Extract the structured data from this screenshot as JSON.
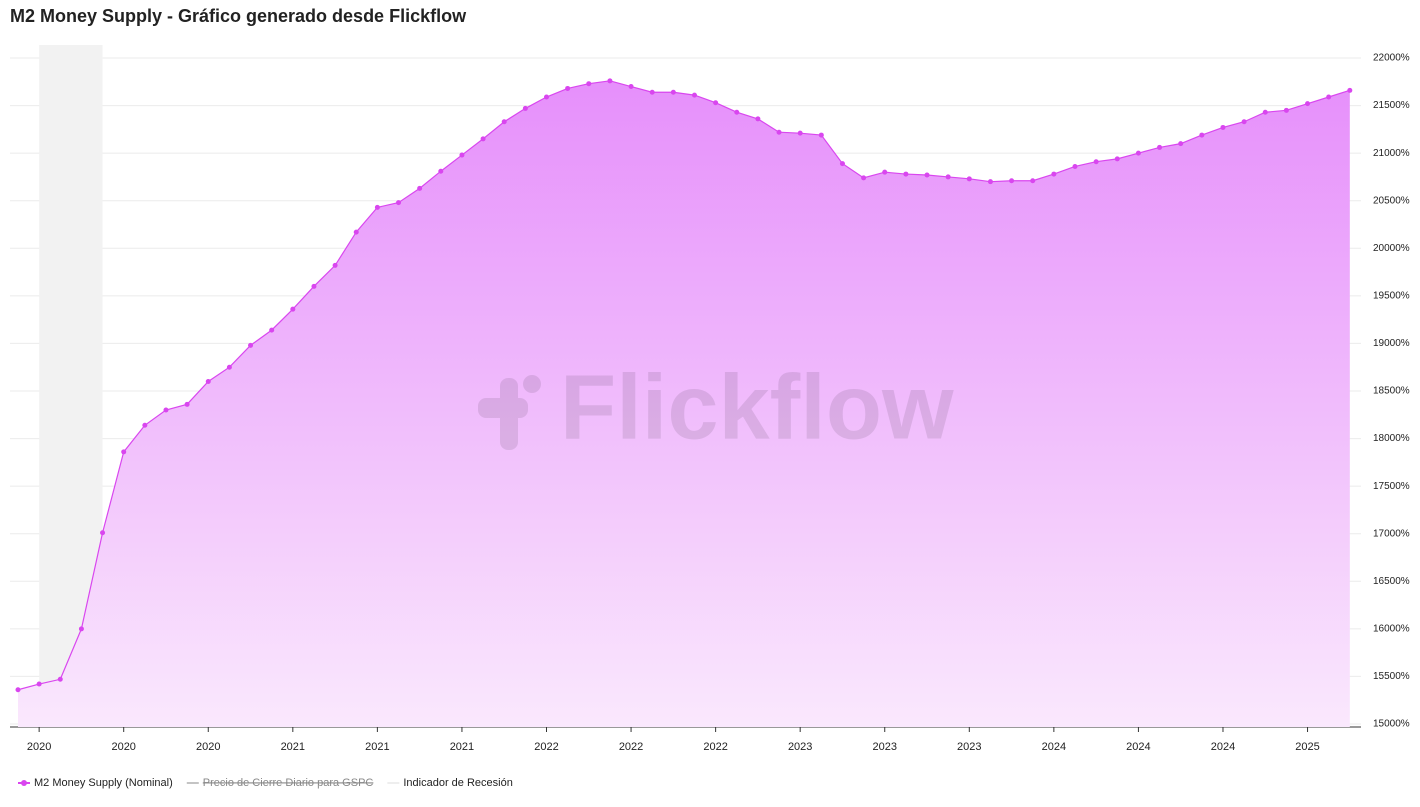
{
  "chart_data": {
    "type": "area",
    "title": "M2 Money Supply - Gráfico generado desde Flickflow",
    "watermark": "Flickflow",
    "categories": [
      null,
      "2020",
      null,
      null,
      null,
      "2020",
      null,
      null,
      null,
      "2020",
      null,
      null,
      null,
      "2021",
      null,
      null,
      null,
      "2021",
      null,
      null,
      null,
      "2021",
      null,
      null,
      null,
      "2022",
      null,
      null,
      null,
      "2022",
      null,
      null,
      null,
      "2022",
      null,
      null,
      null,
      "2023",
      null,
      null,
      null,
      "2023",
      null,
      null,
      null,
      "2023",
      null,
      null,
      null,
      "2024",
      null,
      null,
      null,
      "2024",
      null,
      null,
      null,
      "2024",
      null,
      null,
      null,
      "2025",
      null,
      null
    ],
    "series": [
      {
        "name": "M2 Money Supply (Nominal)",
        "color": "#d946ef",
        "values": [
          15360,
          15420,
          15470,
          16000,
          17010,
          17860,
          18140,
          18300,
          18360,
          18600,
          18750,
          18980,
          19140,
          19360,
          19600,
          19820,
          20170,
          20430,
          20480,
          20630,
          20810,
          20980,
          21150,
          21330,
          21470,
          21590,
          21680,
          21730,
          21760,
          21700,
          21640,
          21640,
          21610,
          21530,
          21430,
          21360,
          21220,
          21210,
          21190,
          20890,
          20740,
          20800,
          20780,
          20770,
          20750,
          20730,
          20700,
          20710,
          20710,
          20780,
          20860,
          20910,
          20940,
          21000,
          21060,
          21100,
          21190,
          21270,
          21330,
          21430,
          21450,
          21520,
          21590,
          21660
        ]
      },
      {
        "name": "Precio de Cierre Diario para GSPC",
        "color": "#888888",
        "hidden": true,
        "values": [
          null,
          null,
          null,
          null,
          null,
          null,
          null,
          null,
          null,
          null,
          null,
          null,
          null,
          null,
          null,
          null,
          null,
          null,
          null,
          null,
          null,
          null,
          null,
          null,
          null,
          null,
          null,
          null,
          null,
          null,
          null,
          null,
          null,
          null,
          null,
          null,
          null,
          null,
          null,
          null,
          null,
          null,
          null,
          null,
          null,
          null,
          null,
          null,
          null,
          null,
          null,
          null,
          null,
          null,
          null,
          null,
          null,
          null,
          null,
          null,
          null,
          null,
          null,
          null
        ]
      }
    ],
    "recession": {
      "name": "Indicador de Recesión",
      "color": "#f2f2f2",
      "start": 1,
      "end": 4
    },
    "ylim": [
      15000,
      22000
    ],
    "yticks": [
      {
        "value": 15000,
        "label": "15000%"
      },
      {
        "value": 15500,
        "label": "15500%"
      },
      {
        "value": 16000,
        "label": "16000%"
      },
      {
        "value": 16500,
        "label": "16500%"
      },
      {
        "value": 17000,
        "label": "17000%"
      },
      {
        "value": 17500,
        "label": "17500%"
      },
      {
        "value": 18000,
        "label": "18000%"
      },
      {
        "value": 18500,
        "label": "18500%"
      },
      {
        "value": 19000,
        "label": "19000%"
      },
      {
        "value": 19500,
        "label": "19500%"
      },
      {
        "value": 20000,
        "label": "20000%"
      },
      {
        "value": 20500,
        "label": "20500%"
      },
      {
        "value": 21000,
        "label": "21000%"
      },
      {
        "value": 21500,
        "label": "21500%"
      },
      {
        "value": 22000,
        "label": "22000%"
      }
    ],
    "grid": true,
    "legend": "bottom-left"
  }
}
